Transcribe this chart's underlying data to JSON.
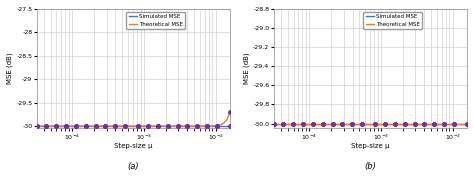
{
  "subplot_a": {
    "ylim": [
      -30.05,
      -27.5
    ],
    "yticks": [
      -30,
      -29.5,
      -29,
      -28.5,
      -28,
      -27.5
    ],
    "xlim_log": [
      -4.5,
      -1.8
    ],
    "xlabel": "Step-size μ",
    "ylabel": "MSE (dB)",
    "label": "(a)",
    "mu_start_exp": -4.5,
    "mu_end_exp": -1.8,
    "noise_floor": -30.0,
    "rise_factor": 12.0,
    "rise_exp": 5.0
  },
  "subplot_b": {
    "ylim": [
      -30.05,
      -28.8
    ],
    "yticks": [
      -30,
      -29.8,
      -29.6,
      -29.4,
      -29.2,
      -29,
      -28.8
    ],
    "xlim_log": [
      -4.5,
      -1.8
    ],
    "xlabel": "Step-size μ",
    "ylabel": "MSE (dB)",
    "label": "(b)",
    "noise_floor": -30.0,
    "rise_factor": 5.5,
    "rise_exp": 5.0
  },
  "line_sim_color": "#4472C4",
  "line_theo_color": "#ED7D31",
  "marker_color": "#7030A0",
  "marker": "o",
  "markersize": 2.5,
  "legend_labels": [
    "Simulated MSE",
    "Theoretical MSE"
  ],
  "grid_color": "#D0D0D0",
  "background_color": "#FFFFFF",
  "n_points": 60,
  "n_markers": 20
}
